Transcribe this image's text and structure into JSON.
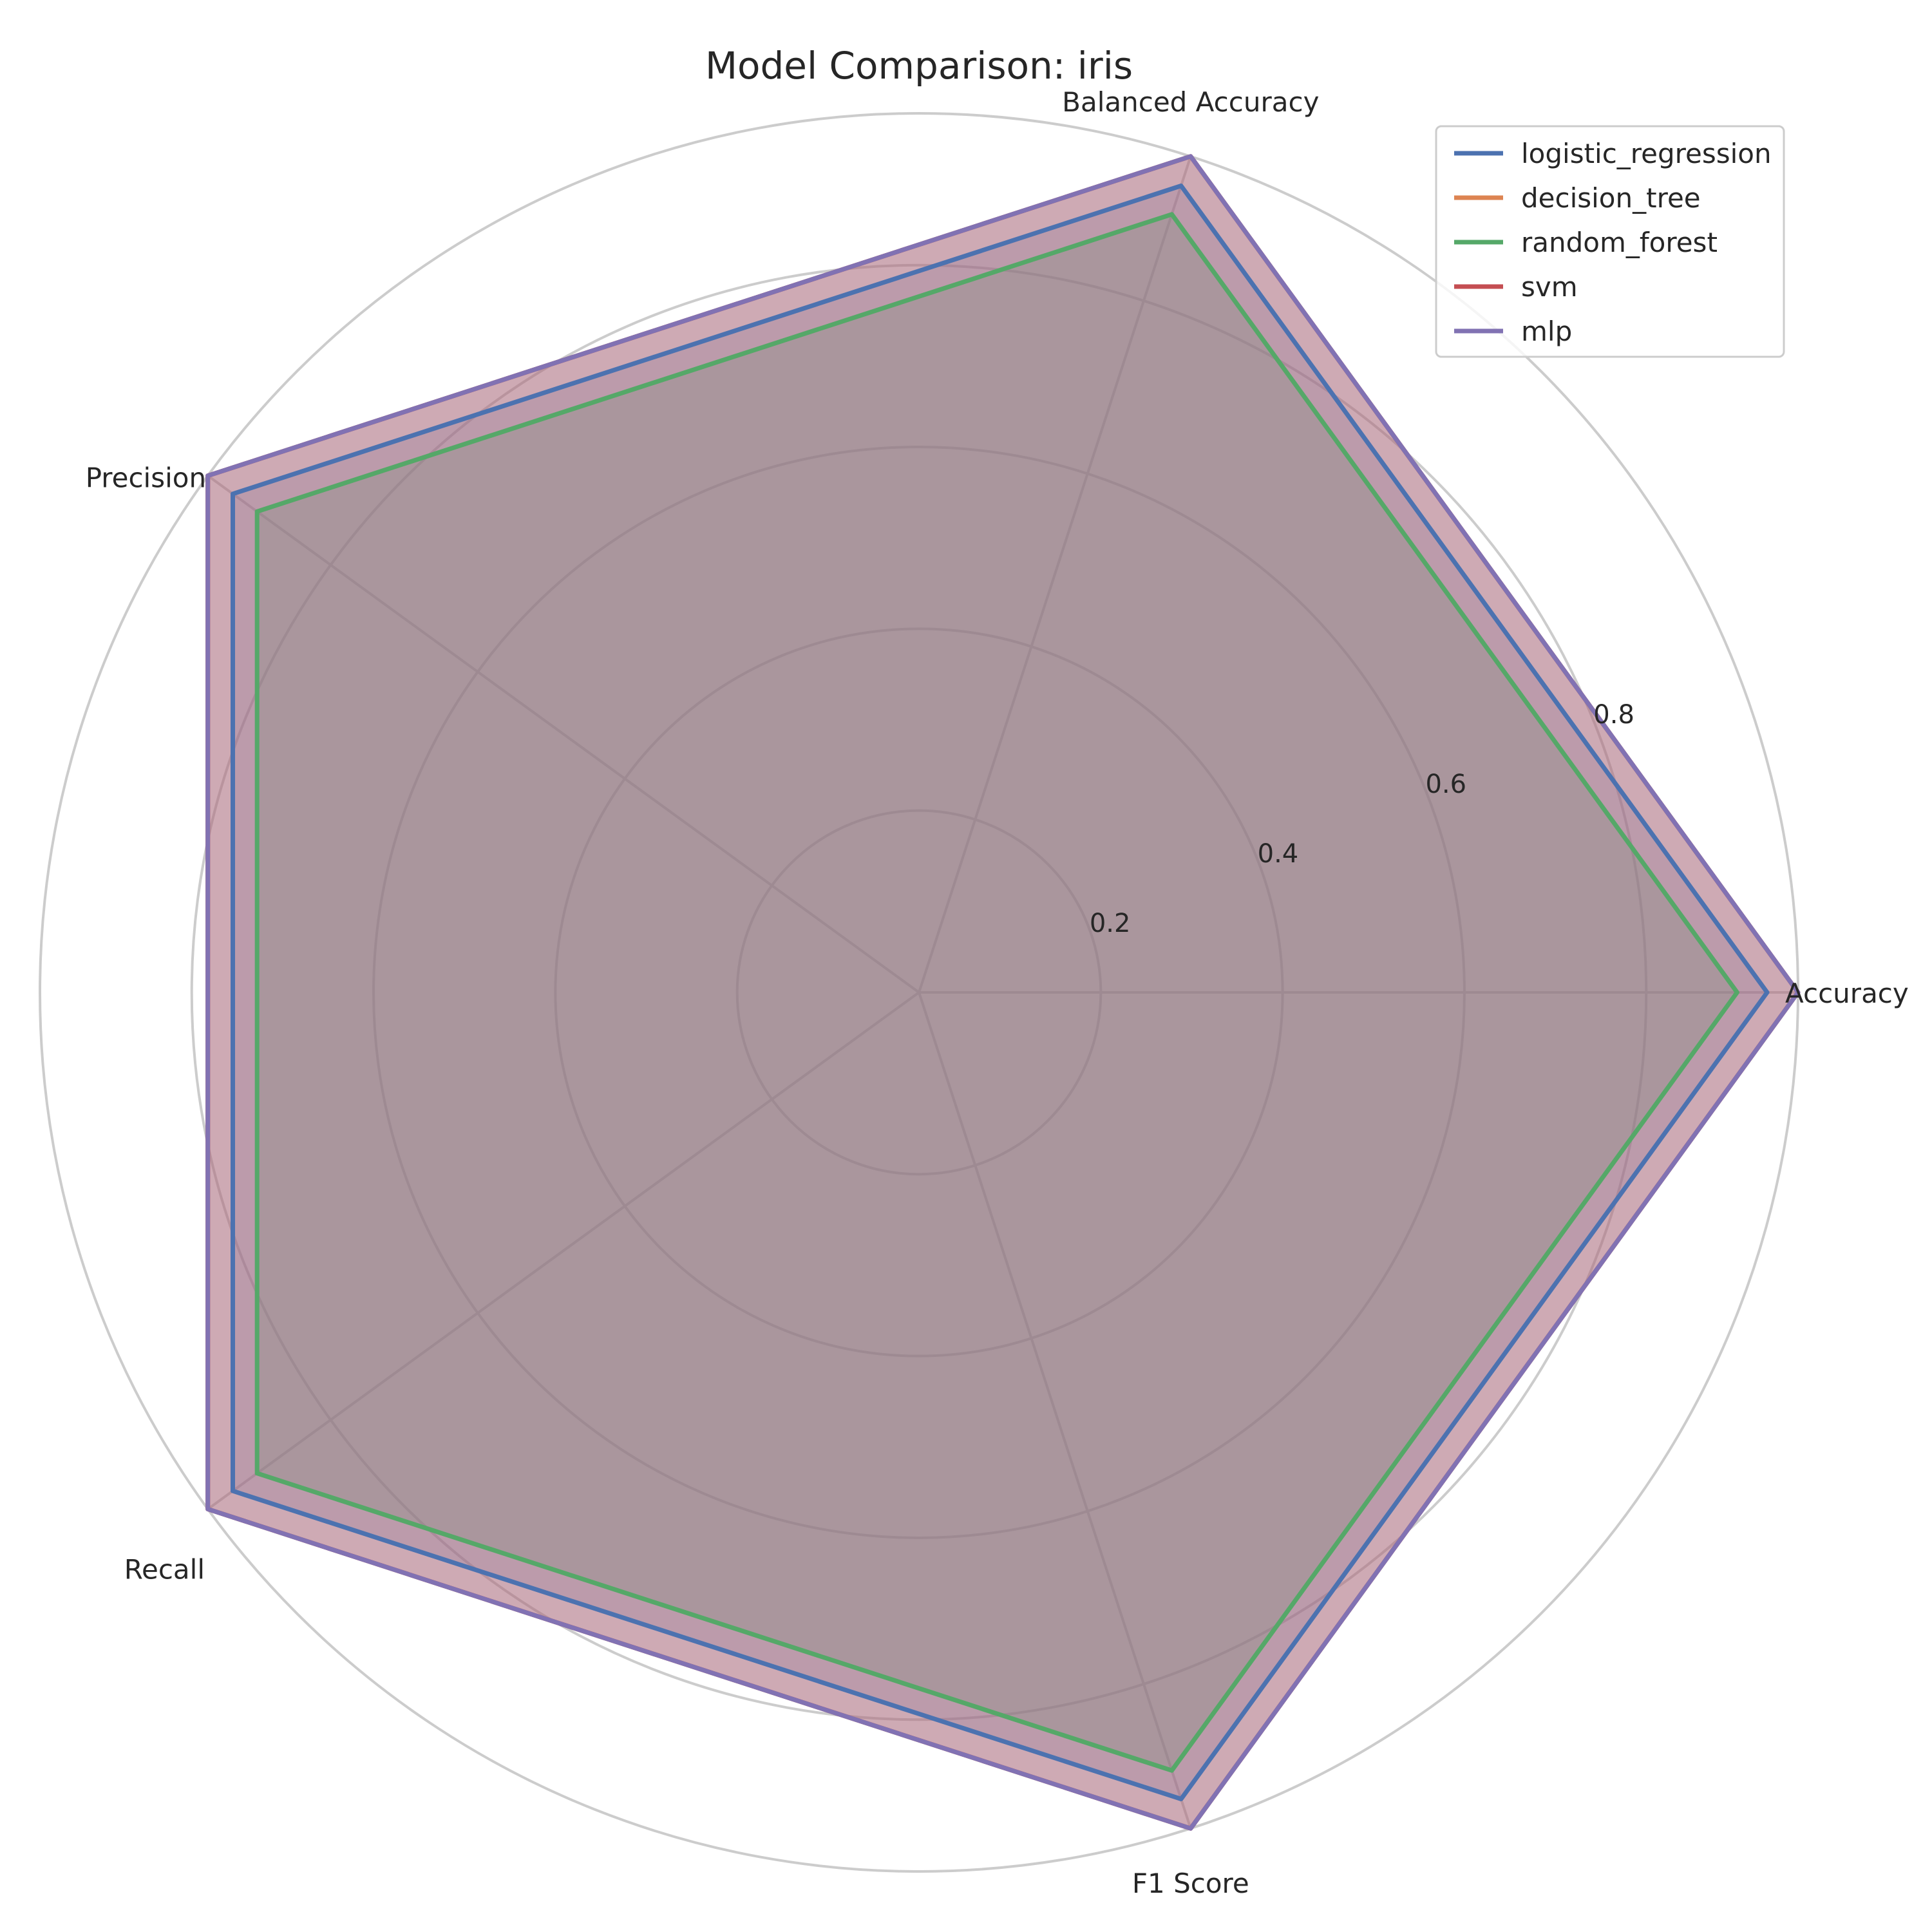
{
  "chart_data": {
    "type": "radar",
    "title": "Model Comparison: iris",
    "axes": [
      "Accuracy",
      "Balanced Accuracy",
      "Precision",
      "Recall",
      "F1 Score"
    ],
    "rlim": [
      0,
      0.967
    ],
    "r_ticks": [
      0.2,
      0.4,
      0.6,
      0.8
    ],
    "r_tick_labels": [
      "0.2",
      "0.4",
      "0.6",
      "0.8"
    ],
    "grid": true,
    "legend_position": "upper-right",
    "series": [
      {
        "name": "logistic_regression",
        "color": "#4c72b0",
        "values": [
          0.933,
          0.933,
          0.933,
          0.933,
          0.933
        ]
      },
      {
        "name": "decision_tree",
        "color": "#dd8452",
        "values": [
          0.967,
          0.967,
          0.967,
          0.967,
          0.967
        ]
      },
      {
        "name": "random_forest",
        "color": "#55a868",
        "values": [
          0.9,
          0.9,
          0.9,
          0.9,
          0.9
        ]
      },
      {
        "name": "svm",
        "color": "#c44e52",
        "values": [
          0.967,
          0.967,
          0.967,
          0.967,
          0.967
        ]
      },
      {
        "name": "mlp",
        "color": "#8172b3",
        "values": [
          0.967,
          0.967,
          0.967,
          0.967,
          0.967
        ]
      }
    ]
  }
}
